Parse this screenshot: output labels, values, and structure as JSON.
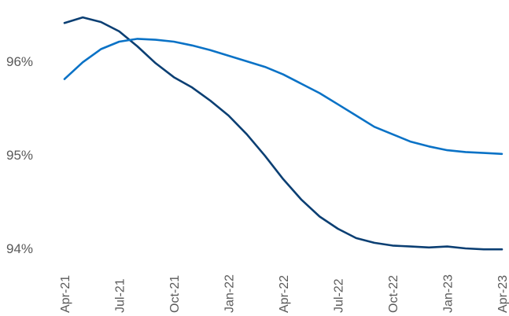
{
  "chart_data": {
    "type": "line",
    "title": "",
    "xlabel": "",
    "ylabel": "",
    "ylim": [
      93.9,
      96.6
    ],
    "y_ticks": [
      {
        "value": 94,
        "label": "94%"
      },
      {
        "value": 95,
        "label": "95%"
      },
      {
        "value": 96,
        "label": "96%"
      }
    ],
    "x_ticks": [
      {
        "index": 0,
        "label": "Apr-21"
      },
      {
        "index": 3,
        "label": "Jul-21"
      },
      {
        "index": 6,
        "label": "Oct-21"
      },
      {
        "index": 9,
        "label": "Jan-22"
      },
      {
        "index": 12,
        "label": "Apr-22"
      },
      {
        "index": 15,
        "label": "Jul-22"
      },
      {
        "index": 18,
        "label": "Oct-22"
      },
      {
        "index": 21,
        "label": "Jan-23"
      },
      {
        "index": 24,
        "label": "Apr-23"
      }
    ],
    "x": [
      "Apr-21",
      "May-21",
      "Jun-21",
      "Jul-21",
      "Aug-21",
      "Sep-21",
      "Oct-21",
      "Nov-21",
      "Dec-21",
      "Jan-22",
      "Feb-22",
      "Mar-22",
      "Apr-22",
      "May-22",
      "Jun-22",
      "Jul-22",
      "Aug-22",
      "Sep-22",
      "Oct-22",
      "Nov-22",
      "Dec-22",
      "Jan-23",
      "Feb-23",
      "Mar-23",
      "Apr-23"
    ],
    "grid": false,
    "legend": "none",
    "series": [
      {
        "color": "#0b3f73",
        "values": [
          96.41,
          96.47,
          96.42,
          96.32,
          96.16,
          95.98,
          95.83,
          95.72,
          95.58,
          95.42,
          95.22,
          94.99,
          94.74,
          94.52,
          94.34,
          94.21,
          94.11,
          94.06,
          94.03,
          94.02,
          94.01,
          94.02,
          94.0,
          93.99,
          93.99
        ]
      },
      {
        "color": "#0a72c6",
        "values": [
          95.81,
          95.99,
          96.13,
          96.21,
          96.24,
          96.23,
          96.21,
          96.17,
          96.12,
          96.06,
          96.0,
          95.94,
          95.86,
          95.76,
          95.66,
          95.54,
          95.42,
          95.3,
          95.22,
          95.14,
          95.09,
          95.05,
          95.03,
          95.02,
          95.01
        ]
      }
    ]
  }
}
